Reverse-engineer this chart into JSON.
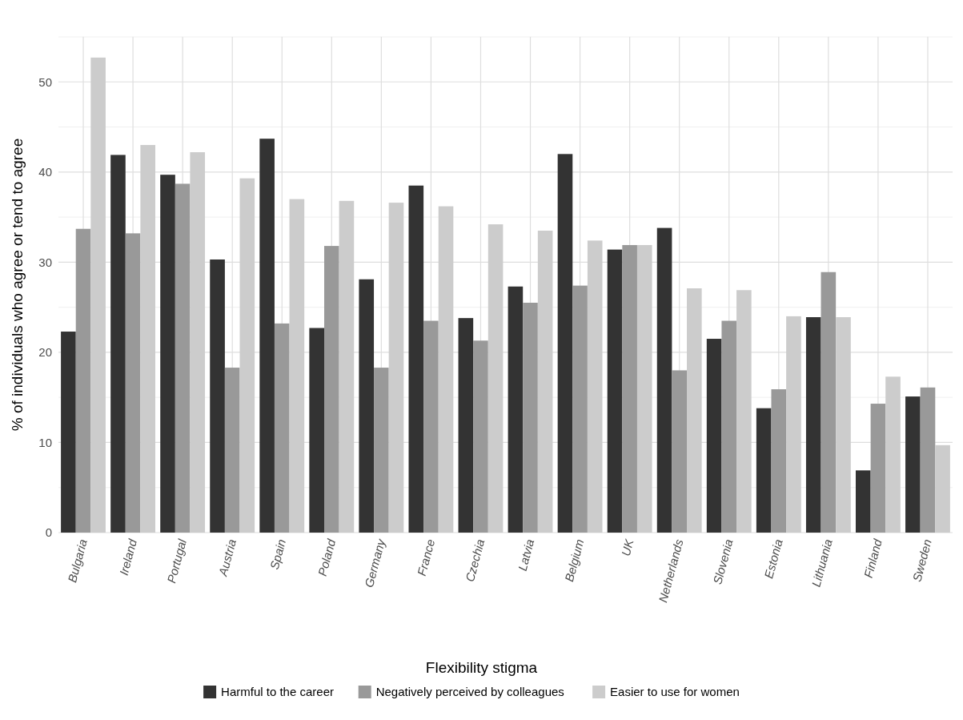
{
  "chart_data": {
    "type": "bar",
    "ylabel": "% of individuals who agree or tend to agree",
    "legend_title": "Flexibility stigma",
    "categories": [
      "Bulgaria",
      "Ireland",
      "Portugal",
      "Austria",
      "Spain",
      "Poland",
      "Germany",
      "France",
      "Czechia",
      "Latvia",
      "Belgium",
      "UK",
      "Netherlands",
      "Slovenia",
      "Estonia",
      "Lithuania",
      "Finland",
      "Sweden"
    ],
    "series": [
      {
        "name": "Harmful to the career",
        "color": "#333333",
        "values": [
          22.3,
          41.9,
          39.7,
          30.3,
          43.7,
          22.7,
          28.1,
          38.5,
          23.8,
          27.3,
          42.0,
          31.4,
          33.8,
          21.5,
          13.8,
          23.9,
          6.9,
          15.1
        ]
      },
      {
        "name": "Negatively perceived by colleagues",
        "color": "#999999",
        "values": [
          33.7,
          33.2,
          38.7,
          18.3,
          23.2,
          31.8,
          18.3,
          23.5,
          21.3,
          25.5,
          27.4,
          31.9,
          18.0,
          23.5,
          15.9,
          28.9,
          14.3,
          16.1
        ]
      },
      {
        "name": "Easier to use for women",
        "color": "#cccccc",
        "values": [
          52.7,
          43.0,
          42.2,
          39.3,
          37.0,
          36.8,
          36.6,
          36.2,
          34.2,
          33.5,
          32.4,
          31.9,
          27.1,
          26.9,
          24.0,
          23.9,
          17.3,
          9.7
        ]
      }
    ],
    "ylim": [
      0,
      55
    ],
    "yticks": [
      0,
      10,
      20,
      30,
      40,
      50
    ],
    "grid": true,
    "legend": "bottom"
  }
}
